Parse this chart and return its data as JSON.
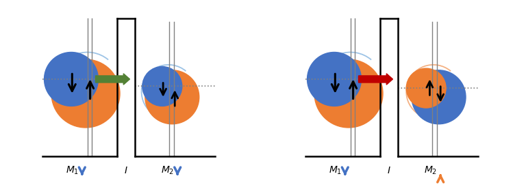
{
  "bg_color": "#ffffff",
  "blue_color": "#4472C4",
  "orange_color": "#ED7D31",
  "light_blue_color": "#9DC3E6",
  "light_orange_color": "#F4B183",
  "green_color": "#538135",
  "red_color": "#C00000",
  "blue_arrow": "#4472C4",
  "orange_arrow": "#ED7D31",
  "black": "#000000",
  "dark_gray": "#404040",
  "figsize": [
    7.68,
    2.74
  ]
}
